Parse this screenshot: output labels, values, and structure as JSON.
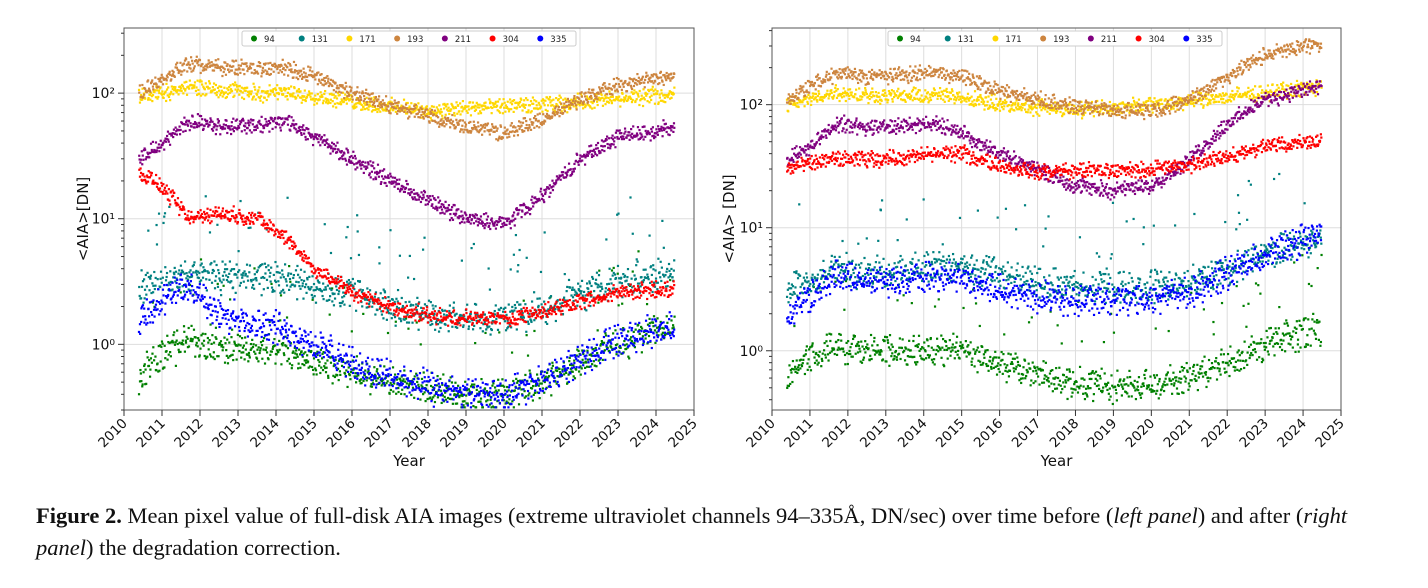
{
  "caption": {
    "label": "Figure 2.",
    "text_a": " Mean pixel value of full-disk AIA images (extreme ultraviolet channels 94–335Å, DN/sec) over time before (",
    "italic_a": "left panel",
    "text_b": ") and after (",
    "italic_b": "right panel",
    "text_c": ") the degradation correction."
  },
  "chart_data": [
    {
      "type": "scatter",
      "panel": "left",
      "xlabel": "Year",
      "ylabel": "<AIA>[DN]",
      "xlim": [
        2010,
        2025
      ],
      "ylim": [
        0.3,
        330
      ],
      "yscale": "log",
      "grid": true,
      "legend_position": "top-center",
      "xticks": [
        "2010",
        "2011",
        "2012",
        "2013",
        "2014",
        "2015",
        "2016",
        "2017",
        "2018",
        "2019",
        "2020",
        "2021",
        "2022",
        "2023",
        "2024",
        "2025"
      ],
      "yticks": [
        {
          "value": 1,
          "label": "10⁰"
        },
        {
          "value": 10,
          "label": "10¹"
        },
        {
          "value": 100,
          "label": "10²"
        }
      ],
      "series": [
        {
          "name": "94",
          "color": "#008000",
          "x": [
            2010.4,
            2011,
            2011.7,
            2012.5,
            2013.5,
            2014.3,
            2015,
            2016,
            2017,
            2018,
            2019,
            2020,
            2021,
            2022,
            2023,
            2024,
            2024.5
          ],
          "y": [
            0.55,
            0.8,
            1.1,
            1.0,
            0.95,
            0.85,
            0.75,
            0.6,
            0.5,
            0.45,
            0.4,
            0.4,
            0.5,
            0.7,
            1.0,
            1.3,
            1.4
          ]
        },
        {
          "name": "131",
          "color": "#008080",
          "x": [
            2010.4,
            2011,
            2011.7,
            2012.5,
            2013.5,
            2014.3,
            2015,
            2016,
            2017,
            2018,
            2019,
            2020,
            2021,
            2022,
            2023,
            2024,
            2024.5
          ],
          "y": [
            2.8,
            3.0,
            3.6,
            3.4,
            3.4,
            3.3,
            2.9,
            2.5,
            2.0,
            1.7,
            1.6,
            1.6,
            1.9,
            2.5,
            3.2,
            3.6,
            3.8
          ]
        },
        {
          "name": "171",
          "color": "#FFD700",
          "x": [
            2010.4,
            2011,
            2011.7,
            2012.5,
            2013.5,
            2014.3,
            2015,
            2016,
            2017,
            2018,
            2019,
            2020,
            2021,
            2022,
            2023,
            2024,
            2024.5
          ],
          "y": [
            95,
            100,
            112,
            108,
            100,
            100,
            95,
            85,
            78,
            72,
            75,
            78,
            80,
            85,
            90,
            95,
            98
          ]
        },
        {
          "name": "193",
          "color": "#CD853F",
          "x": [
            2010.4,
            2011,
            2011.7,
            2012.5,
            2013.5,
            2014.3,
            2015,
            2016,
            2017,
            2018,
            2019,
            2020,
            2021,
            2022,
            2023,
            2024,
            2024.5
          ],
          "y": [
            100,
            130,
            170,
            160,
            155,
            160,
            135,
            100,
            80,
            65,
            55,
            48,
            60,
            90,
            115,
            130,
            140
          ]
        },
        {
          "name": "211",
          "color": "#800080",
          "x": [
            2010.4,
            2011,
            2011.7,
            2012.5,
            2013.5,
            2014.3,
            2015,
            2016,
            2017,
            2018,
            2019,
            2020,
            2021,
            2022,
            2023,
            2024,
            2024.5
          ],
          "y": [
            30,
            40,
            60,
            55,
            55,
            60,
            45,
            30,
            20,
            14,
            10,
            9,
            15,
            30,
            45,
            50,
            55
          ]
        },
        {
          "name": "304",
          "color": "#FF0000",
          "x": [
            2010.4,
            2011,
            2011.7,
            2012.5,
            2013.5,
            2014.3,
            2015,
            2016,
            2017,
            2018,
            2019,
            2020,
            2021,
            2022,
            2023,
            2024,
            2024.5
          ],
          "y": [
            24,
            18,
            10,
            11,
            10,
            7,
            4,
            2.6,
            2.0,
            1.7,
            1.6,
            1.6,
            1.8,
            2.2,
            2.6,
            2.7,
            2.8
          ]
        },
        {
          "name": "335",
          "color": "#0000FF",
          "x": [
            2010.4,
            2011,
            2011.7,
            2012.5,
            2013.5,
            2014.3,
            2015,
            2016,
            2017,
            2018,
            2019,
            2020,
            2021,
            2022,
            2023,
            2024,
            2024.5
          ],
          "y": [
            1.5,
            2.2,
            3.0,
            1.7,
            1.5,
            1.3,
            1.0,
            0.7,
            0.55,
            0.45,
            0.4,
            0.4,
            0.5,
            0.75,
            1.1,
            1.3,
            1.4
          ]
        }
      ]
    },
    {
      "type": "scatter",
      "panel": "right",
      "xlabel": "Year",
      "ylabel": "<AIA> [DN]",
      "xlim": [
        2010,
        2025
      ],
      "ylim": [
        0.33,
        420
      ],
      "yscale": "log",
      "grid": true,
      "legend_position": "top-center",
      "xticks": [
        "2010",
        "2011",
        "2012",
        "2013",
        "2014",
        "2015",
        "2016",
        "2017",
        "2018",
        "2019",
        "2020",
        "2021",
        "2022",
        "2023",
        "2024",
        "2025"
      ],
      "yticks": [
        {
          "value": 1,
          "label": "10⁰"
        },
        {
          "value": 10,
          "label": "10¹"
        },
        {
          "value": 100,
          "label": "10²"
        }
      ],
      "series": [
        {
          "name": "94",
          "color": "#008000",
          "x": [
            2010.4,
            2011,
            2011.7,
            2012.5,
            2013.5,
            2014.3,
            2015,
            2016,
            2017,
            2018,
            2019,
            2020,
            2021,
            2022,
            2023,
            2024,
            2024.5
          ],
          "y": [
            0.65,
            0.85,
            1.1,
            1.0,
            1.0,
            1.0,
            1.0,
            0.8,
            0.65,
            0.55,
            0.52,
            0.52,
            0.6,
            0.8,
            1.1,
            1.4,
            1.5
          ]
        },
        {
          "name": "131",
          "color": "#008080",
          "x": [
            2010.4,
            2011,
            2011.7,
            2012.5,
            2013.5,
            2014.3,
            2015,
            2016,
            2017,
            2018,
            2019,
            2020,
            2021,
            2022,
            2023,
            2024,
            2024.5
          ],
          "y": [
            3.2,
            3.6,
            4.5,
            4.3,
            4.5,
            5.0,
            4.8,
            4.0,
            3.6,
            3.3,
            3.3,
            3.3,
            3.6,
            4.5,
            6.0,
            7.5,
            8.0
          ]
        },
        {
          "name": "171",
          "color": "#FFD700",
          "x": [
            2010.4,
            2011,
            2011.7,
            2012.5,
            2013.5,
            2014.3,
            2015,
            2016,
            2017,
            2018,
            2019,
            2020,
            2021,
            2022,
            2023,
            2024,
            2024.5
          ],
          "y": [
            100,
            110,
            125,
            120,
            118,
            120,
            115,
            100,
            95,
            90,
            95,
            100,
            105,
            115,
            125,
            135,
            140
          ]
        },
        {
          "name": "193",
          "color": "#CD853F",
          "x": [
            2010.4,
            2011,
            2011.7,
            2012.5,
            2013.5,
            2014.3,
            2015,
            2016,
            2017,
            2018,
            2019,
            2020,
            2021,
            2022,
            2023,
            2024,
            2024.5
          ],
          "y": [
            110,
            140,
            180,
            170,
            175,
            185,
            170,
            130,
            110,
            95,
            90,
            90,
            110,
            170,
            250,
            300,
            310
          ]
        },
        {
          "name": "211",
          "color": "#800080",
          "x": [
            2010.4,
            2011,
            2011.7,
            2012.5,
            2013.5,
            2014.3,
            2015,
            2016,
            2017,
            2018,
            2019,
            2020,
            2021,
            2022,
            2023,
            2024,
            2024.5
          ],
          "y": [
            35,
            45,
            70,
            65,
            68,
            70,
            60,
            40,
            30,
            22,
            20,
            22,
            35,
            70,
            110,
            130,
            140
          ]
        },
        {
          "name": "304",
          "color": "#FF0000",
          "x": [
            2010.4,
            2011,
            2011.7,
            2012.5,
            2013.5,
            2014.3,
            2015,
            2016,
            2017,
            2018,
            2019,
            2020,
            2021,
            2022,
            2023,
            2024,
            2024.5
          ],
          "y": [
            30,
            33,
            36,
            36,
            37,
            40,
            40,
            32,
            28,
            29,
            29,
            30,
            32,
            38,
            45,
            50,
            52
          ]
        },
        {
          "name": "335",
          "color": "#0000FF",
          "x": [
            2010.4,
            2011,
            2011.7,
            2012.5,
            2013.5,
            2014.3,
            2015,
            2016,
            2017,
            2018,
            2019,
            2020,
            2021,
            2022,
            2023,
            2024,
            2024.5
          ],
          "y": [
            1.8,
            2.8,
            4.0,
            3.6,
            3.8,
            4.0,
            3.8,
            3.2,
            2.8,
            2.6,
            2.6,
            2.7,
            3.0,
            4.2,
            6.0,
            8.0,
            9.0
          ]
        }
      ]
    }
  ]
}
